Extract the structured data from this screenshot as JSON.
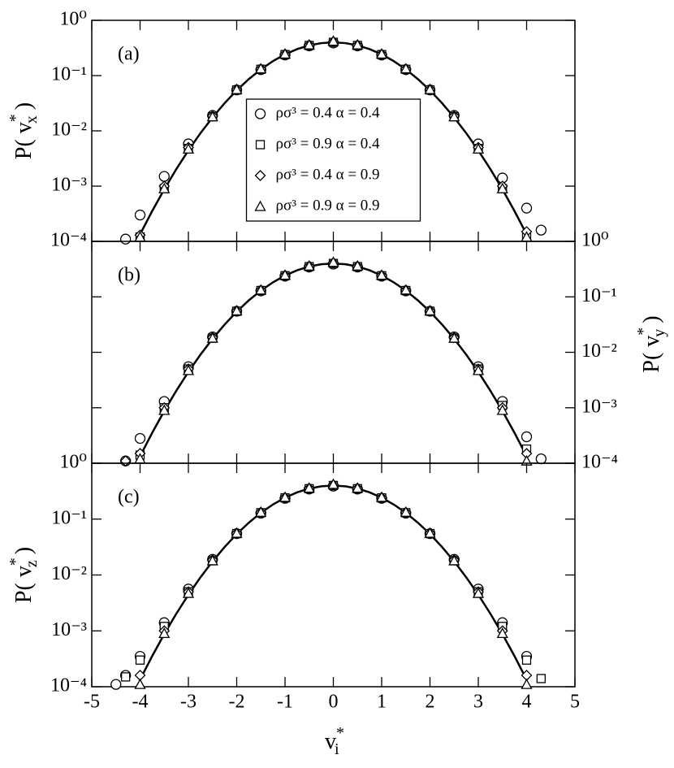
{
  "chart_data": [
    {
      "type": "scatter",
      "panel_label": "(a)",
      "ylabel": {
        "main": "P( v",
        "sup": "*",
        "sub": "x",
        "end": " )"
      },
      "ytick_side": "left",
      "ylog": true,
      "ylim": [
        0.0001,
        1
      ],
      "yticks": [
        {
          "value": 1,
          "label": "10⁰"
        },
        {
          "value": 0.1,
          "label": "10⁻¹"
        },
        {
          "value": 0.01,
          "label": "10⁻²"
        },
        {
          "value": 0.001,
          "label": "10⁻³"
        },
        {
          "value": 0.0001,
          "label": "10⁻⁴"
        }
      ],
      "xlim": [
        -5,
        5
      ],
      "xticks": [
        -5,
        -4,
        -3,
        -2,
        -1,
        0,
        1,
        2,
        3,
        4,
        5
      ],
      "show_xtick_labels": false,
      "legend": "center",
      "x": [
        -4.5,
        -4.3,
        -4,
        -3.5,
        -3,
        -2.5,
        -2,
        -1.5,
        -1,
        -0.5,
        0,
        0.5,
        1,
        1.5,
        2,
        2.5,
        3,
        3.5,
        4,
        4.3
      ],
      "series": [
        {
          "name": "ρσ³ = 0.4 α = 0.4",
          "marker": "circle",
          "color": "#000000",
          "values": [
            null,
            0.00011,
            0.0003,
            0.0015,
            0.0058,
            0.019,
            0.055,
            0.128,
            0.236,
            0.345,
            0.39,
            0.345,
            0.236,
            0.128,
            0.055,
            0.019,
            0.0058,
            0.0014,
            0.0004,
            0.00016
          ]
        },
        {
          "name": "ρσ³ = 0.9 α = 0.4",
          "marker": "square",
          "color": "#000000",
          "values": [
            null,
            null,
            0.00012,
            0.0009,
            0.0048,
            0.018,
            0.055,
            0.13,
            0.24,
            0.35,
            0.4,
            0.35,
            0.24,
            0.13,
            0.055,
            0.018,
            0.0048,
            0.0009,
            0.00012,
            null
          ]
        },
        {
          "name": "ρσ³ = 0.4 α = 0.9",
          "marker": "diamond",
          "color": "#000000",
          "values": [
            null,
            null,
            0.00013,
            0.001,
            0.005,
            0.0185,
            0.056,
            0.132,
            0.243,
            0.355,
            0.41,
            0.355,
            0.243,
            0.132,
            0.056,
            0.0185,
            0.005,
            0.001,
            0.00015,
            null
          ]
        },
        {
          "name": "ρσ³ = 0.9 α = 0.9",
          "marker": "triangle",
          "color": "#000000",
          "values": [
            null,
            null,
            0.00012,
            0.0009,
            0.0047,
            0.018,
            0.056,
            0.133,
            0.246,
            0.36,
            0.42,
            0.36,
            0.246,
            0.133,
            0.056,
            0.018,
            0.0047,
            0.0009,
            0.00012,
            null
          ]
        }
      ],
      "curve": {
        "color": "#000000",
        "x": [
          -4,
          -3.75,
          -3.5,
          -3.25,
          -3,
          -2.75,
          -2.5,
          -2.25,
          -2,
          -1.75,
          -1.5,
          -1.25,
          -1,
          -0.75,
          -0.5,
          -0.25,
          0,
          0.25,
          0.5,
          0.75,
          1,
          1.25,
          1.5,
          1.75,
          2,
          2.25,
          2.5,
          2.75,
          3,
          3.25,
          3.5,
          3.75,
          4
        ],
        "values": [
          0.000134,
          0.000353,
          0.000873,
          0.00203,
          0.00443,
          0.00909,
          0.0175,
          0.0317,
          0.054,
          0.0863,
          0.1295,
          0.1826,
          0.242,
          0.3011,
          0.3521,
          0.3867,
          0.3989,
          0.3867,
          0.3521,
          0.3011,
          0.242,
          0.1826,
          0.1295,
          0.0863,
          0.054,
          0.0317,
          0.0175,
          0.00909,
          0.00443,
          0.00203,
          0.000873,
          0.000353,
          0.000134
        ]
      }
    },
    {
      "type": "scatter",
      "panel_label": "(b)",
      "ylabel": {
        "main": "P( v",
        "sup": "*",
        "sub": "y",
        "end": " )"
      },
      "ytick_side": "right",
      "ylog": true,
      "ylim": [
        0.0001,
        1
      ],
      "yticks": [
        {
          "value": 1,
          "label": "10⁰"
        },
        {
          "value": 0.1,
          "label": "10⁻¹"
        },
        {
          "value": 0.01,
          "label": "10⁻²"
        },
        {
          "value": 0.001,
          "label": "10⁻³"
        },
        {
          "value": 0.0001,
          "label": "10⁻⁴"
        }
      ],
      "xlim": [
        -5,
        5
      ],
      "xticks": [
        -5,
        -4,
        -3,
        -2,
        -1,
        0,
        1,
        2,
        3,
        4,
        5
      ],
      "show_xtick_labels": false,
      "x": [
        -4.5,
        -4.3,
        -4,
        -3.5,
        -3,
        -2.5,
        -2,
        -1.5,
        -1,
        -0.5,
        0,
        0.5,
        1,
        1.5,
        2,
        2.5,
        3,
        3.5,
        4,
        4.3
      ],
      "series": [
        {
          "marker": "circle",
          "color": "#000000",
          "values": [
            null,
            0.00011,
            0.00028,
            0.0013,
            0.0055,
            0.019,
            0.055,
            0.128,
            0.236,
            0.345,
            0.39,
            0.345,
            0.236,
            0.128,
            0.055,
            0.019,
            0.0055,
            0.0013,
            0.0003,
            0.00012
          ]
        },
        {
          "marker": "square",
          "color": "#000000",
          "values": [
            null,
            null,
            0.00014,
            0.001,
            0.005,
            0.018,
            0.055,
            0.13,
            0.24,
            0.35,
            0.4,
            0.35,
            0.24,
            0.13,
            0.055,
            0.018,
            0.005,
            0.0011,
            0.00018,
            null
          ]
        },
        {
          "marker": "diamond",
          "color": "#000000",
          "values": [
            null,
            0.00011,
            0.00015,
            0.001,
            0.005,
            0.0185,
            0.056,
            0.132,
            0.243,
            0.355,
            0.41,
            0.355,
            0.243,
            0.132,
            0.056,
            0.0185,
            0.005,
            0.001,
            0.00015,
            null
          ]
        },
        {
          "marker": "triangle",
          "color": "#000000",
          "values": [
            null,
            null,
            0.00012,
            0.0009,
            0.0047,
            0.018,
            0.056,
            0.133,
            0.246,
            0.36,
            0.42,
            0.36,
            0.246,
            0.133,
            0.056,
            0.018,
            0.0047,
            0.0009,
            0.00011,
            null
          ]
        }
      ],
      "curve": {
        "color": "#000000",
        "x": [
          -4,
          -3.75,
          -3.5,
          -3.25,
          -3,
          -2.75,
          -2.5,
          -2.25,
          -2,
          -1.75,
          -1.5,
          -1.25,
          -1,
          -0.75,
          -0.5,
          -0.25,
          0,
          0.25,
          0.5,
          0.75,
          1,
          1.25,
          1.5,
          1.75,
          2,
          2.25,
          2.5,
          2.75,
          3,
          3.25,
          3.5,
          3.75,
          4
        ],
        "values": [
          0.000134,
          0.000353,
          0.000873,
          0.00203,
          0.00443,
          0.00909,
          0.0175,
          0.0317,
          0.054,
          0.0863,
          0.1295,
          0.1826,
          0.242,
          0.3011,
          0.3521,
          0.3867,
          0.3989,
          0.3867,
          0.3521,
          0.3011,
          0.242,
          0.1826,
          0.1295,
          0.0863,
          0.054,
          0.0317,
          0.0175,
          0.00909,
          0.00443,
          0.00203,
          0.000873,
          0.000353,
          0.000134
        ]
      }
    },
    {
      "type": "scatter",
      "panel_label": "(c)",
      "ylabel": {
        "main": "P( v",
        "sup": "*",
        "sub": "z",
        "end": " )"
      },
      "xlabel": {
        "main": "v",
        "sup": "*",
        "sub": "i"
      },
      "ytick_side": "left",
      "ylog": true,
      "ylim": [
        0.0001,
        1
      ],
      "yticks": [
        {
          "value": 1,
          "label": "10⁰"
        },
        {
          "value": 0.1,
          "label": "10⁻¹"
        },
        {
          "value": 0.01,
          "label": "10⁻²"
        },
        {
          "value": 0.001,
          "label": "10⁻³"
        },
        {
          "value": 0.0001,
          "label": "10⁻⁴"
        }
      ],
      "xlim": [
        -5,
        5
      ],
      "xticks": [
        -5,
        -4,
        -3,
        -2,
        -1,
        0,
        1,
        2,
        3,
        4,
        5
      ],
      "show_xtick_labels": true,
      "x": [
        -4.5,
        -4.3,
        -4,
        -3.5,
        -3,
        -2.5,
        -2,
        -1.5,
        -1,
        -0.5,
        0,
        0.5,
        1,
        1.5,
        2,
        2.5,
        3,
        3.5,
        4,
        4.3
      ],
      "series": [
        {
          "marker": "circle",
          "color": "#000000",
          "values": [
            0.00011,
            0.00016,
            0.00035,
            0.0014,
            0.0056,
            0.019,
            0.055,
            0.128,
            0.236,
            0.345,
            0.39,
            0.345,
            0.236,
            0.128,
            0.055,
            0.019,
            0.0056,
            0.0014,
            0.00035,
            null
          ]
        },
        {
          "marker": "square",
          "color": "#000000",
          "values": [
            null,
            0.00015,
            0.0003,
            0.0012,
            0.005,
            0.018,
            0.055,
            0.13,
            0.24,
            0.35,
            0.4,
            0.35,
            0.24,
            0.13,
            0.055,
            0.018,
            0.005,
            0.0012,
            0.0003,
            0.00014
          ]
        },
        {
          "marker": "diamond",
          "color": "#000000",
          "values": [
            null,
            null,
            0.00016,
            0.001,
            0.005,
            0.0185,
            0.056,
            0.132,
            0.243,
            0.355,
            0.41,
            0.355,
            0.243,
            0.132,
            0.056,
            0.0185,
            0.005,
            0.001,
            0.00016,
            null
          ]
        },
        {
          "marker": "triangle",
          "color": "#000000",
          "values": [
            null,
            null,
            0.00011,
            0.0009,
            0.0047,
            0.018,
            0.056,
            0.133,
            0.246,
            0.36,
            0.42,
            0.36,
            0.246,
            0.133,
            0.056,
            0.018,
            0.0047,
            0.0009,
            0.00011,
            null
          ]
        }
      ],
      "curve": {
        "color": "#000000",
        "x": [
          -4,
          -3.75,
          -3.5,
          -3.25,
          -3,
          -2.75,
          -2.5,
          -2.25,
          -2,
          -1.75,
          -1.5,
          -1.25,
          -1,
          -0.75,
          -0.5,
          -0.25,
          0,
          0.25,
          0.5,
          0.75,
          1,
          1.25,
          1.5,
          1.75,
          2,
          2.25,
          2.5,
          2.75,
          3,
          3.25,
          3.5,
          3.75,
          4
        ],
        "values": [
          0.000134,
          0.000353,
          0.000873,
          0.00203,
          0.00443,
          0.00909,
          0.0175,
          0.0317,
          0.054,
          0.0863,
          0.1295,
          0.1826,
          0.242,
          0.3011,
          0.3521,
          0.3867,
          0.3989,
          0.3867,
          0.3521,
          0.3011,
          0.242,
          0.1826,
          0.1295,
          0.0863,
          0.054,
          0.0317,
          0.0175,
          0.00909,
          0.00443,
          0.00203,
          0.000873,
          0.000353,
          0.000134
        ]
      }
    }
  ]
}
